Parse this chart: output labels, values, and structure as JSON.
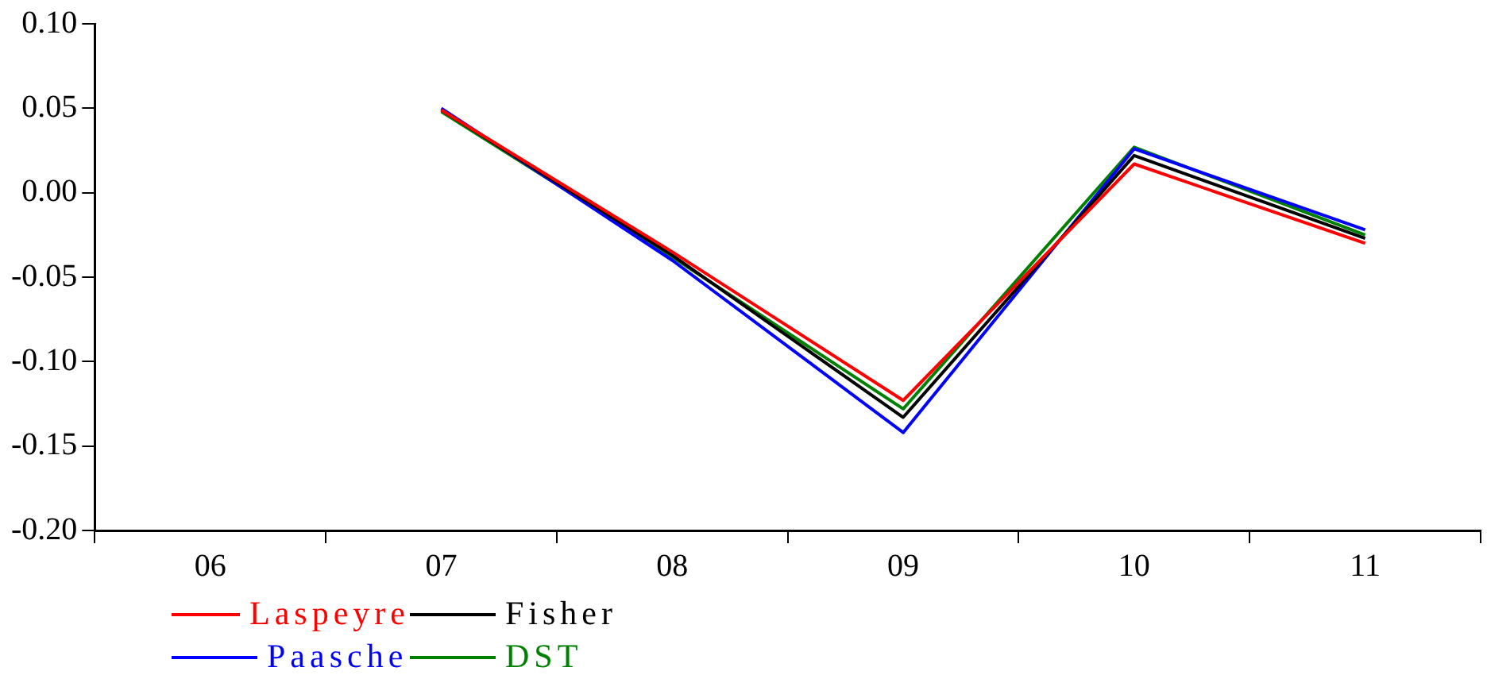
{
  "chart_data": {
    "type": "line",
    "categories": [
      "06",
      "07",
      "08",
      "09",
      "10",
      "11"
    ],
    "series": [
      {
        "name": "Laspeyre",
        "color": "#ff0000",
        "values": [
          null,
          0.049,
          -0.035,
          -0.123,
          0.017,
          -0.03
        ]
      },
      {
        "name": "Fisher",
        "color": "#000000",
        "values": [
          null,
          0.049,
          -0.037,
          -0.133,
          0.022,
          -0.027
        ]
      },
      {
        "name": "Paasche",
        "color": "#0000ff",
        "values": [
          null,
          0.05,
          -0.04,
          -0.142,
          0.026,
          -0.022
        ]
      },
      {
        "name": "DST",
        "color": "#008000",
        "values": [
          null,
          0.048,
          -0.038,
          -0.128,
          0.027,
          -0.025
        ]
      }
    ],
    "ylim": [
      -0.2,
      0.1
    ],
    "yticks": [
      {
        "value": 0.1,
        "label": "0.10"
      },
      0.05,
      {
        "value": 0,
        "label": "0.00"
      },
      -0.05,
      {
        "value": -0.1,
        "label": "-0.10"
      },
      -0.15,
      {
        "value": -0.2,
        "label": "-0.20"
      }
    ],
    "grid": false,
    "legend": "bottom left",
    "marker": "none",
    "line_style": "solid"
  }
}
